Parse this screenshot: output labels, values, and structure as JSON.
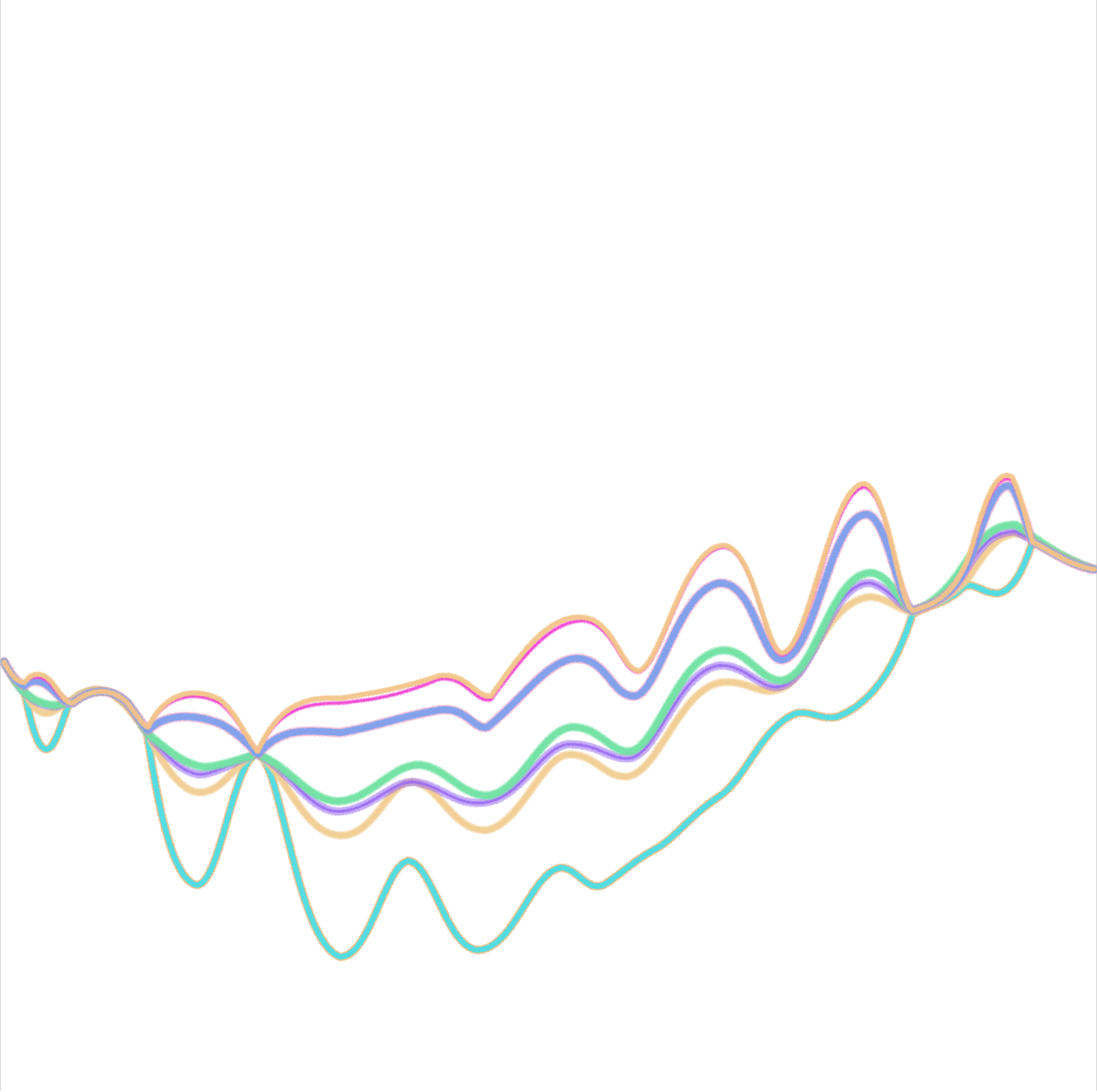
{
  "artwork": {
    "kind": "generative-wave-lines",
    "background_color": "#ffffff",
    "frame_color": "#cfcfcf",
    "lines": [
      {
        "name": "wave-line-cyan",
        "color": "#52dde3",
        "edge_color": "#e08a2c"
      },
      {
        "name": "wave-line-light-orange",
        "color": "#f2cd92",
        "edge_color": "#f2cd92"
      },
      {
        "name": "wave-line-purple",
        "color": "#9b6cf2",
        "edge_color": "#9b6cf2"
      },
      {
        "name": "wave-line-green",
        "color": "#72e2a4",
        "edge_color": "#72e2a4"
      },
      {
        "name": "wave-line-periwinkle",
        "color": "#7ea0ee",
        "edge_color": "#f08cb6"
      },
      {
        "name": "wave-line-pink",
        "color": "#f043d2",
        "edge_color": "#f043d2"
      },
      {
        "name": "wave-line-top-orange",
        "color": "#f3c68a",
        "edge_color": "#f3c68a"
      }
    ]
  }
}
